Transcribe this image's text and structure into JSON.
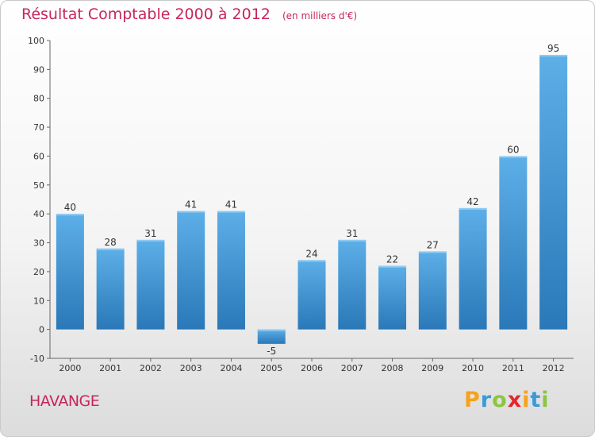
{
  "chart_data": {
    "type": "bar",
    "title": "Résultat Comptable 2000 à 2012",
    "subtitle": "(en milliers d'€)",
    "categories": [
      "2000",
      "2001",
      "2002",
      "2003",
      "2004",
      "2005",
      "2006",
      "2007",
      "2008",
      "2009",
      "2010",
      "2011",
      "2012"
    ],
    "values": [
      40,
      28,
      31,
      41,
      41,
      -5,
      24,
      31,
      22,
      27,
      42,
      60,
      95
    ],
    "ylim": [
      -10,
      100
    ],
    "yticks": [
      -10,
      0,
      10,
      20,
      30,
      40,
      50,
      60,
      70,
      80,
      90,
      100
    ],
    "grid": false,
    "xlabel": "",
    "ylabel": ""
  },
  "place_name": "HAVANGE",
  "logo": {
    "letters": [
      "P",
      "r",
      "o",
      "x",
      "i",
      "t",
      "i"
    ],
    "colors": [
      "#f7a21b",
      "#3b9ad9",
      "#8cc63f",
      "#e2282d",
      "#f7a21b",
      "#3b9ad9",
      "#8cc63f"
    ]
  },
  "colors": {
    "accent": "#c8265a",
    "bar_top": "#5dafe8",
    "bar_bottom": "#2a78b8",
    "axis": "#666666",
    "text": "#333333"
  }
}
